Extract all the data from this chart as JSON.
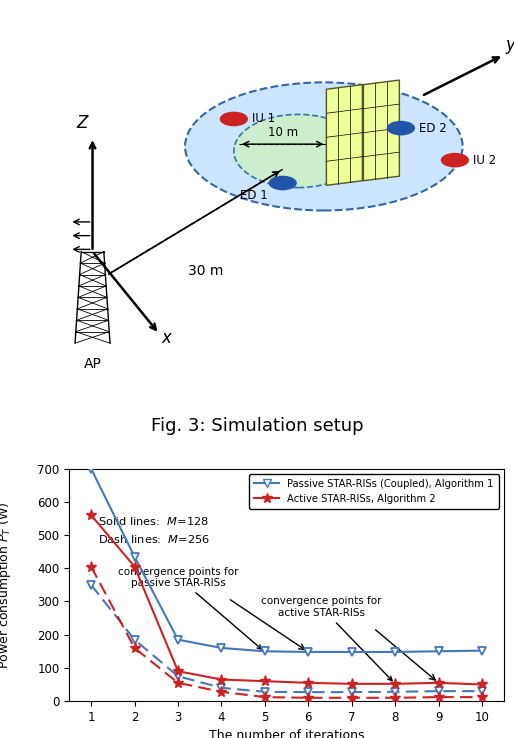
{
  "fig3_title": "Fig. 3: Simulation setup",
  "passive_solid": [
    700,
    435,
    185,
    160,
    150,
    148,
    148,
    148,
    150,
    152
  ],
  "active_solid": [
    560,
    405,
    90,
    65,
    60,
    55,
    52,
    52,
    55,
    50
  ],
  "passive_dashed": [
    350,
    185,
    75,
    40,
    28,
    27,
    27,
    28,
    30,
    30
  ],
  "active_dashed": [
    405,
    160,
    55,
    28,
    12,
    10,
    10,
    10,
    12,
    12
  ],
  "iterations": [
    1,
    2,
    3,
    4,
    5,
    6,
    7,
    8,
    9,
    10
  ],
  "blue_color": "#4477BB",
  "red_color": "#CC2222",
  "legend_passive": "Passive STAR-RISs (Coupled), Algorithm 1",
  "legend_active": "Active STAR-RISs, Algorithm 2",
  "xlabel": "The number of iterations",
  "ylabel": "Power consumption $P_T$ (W)",
  "ylim": [
    0,
    700
  ],
  "xlim": [
    0.5,
    10.5
  ]
}
